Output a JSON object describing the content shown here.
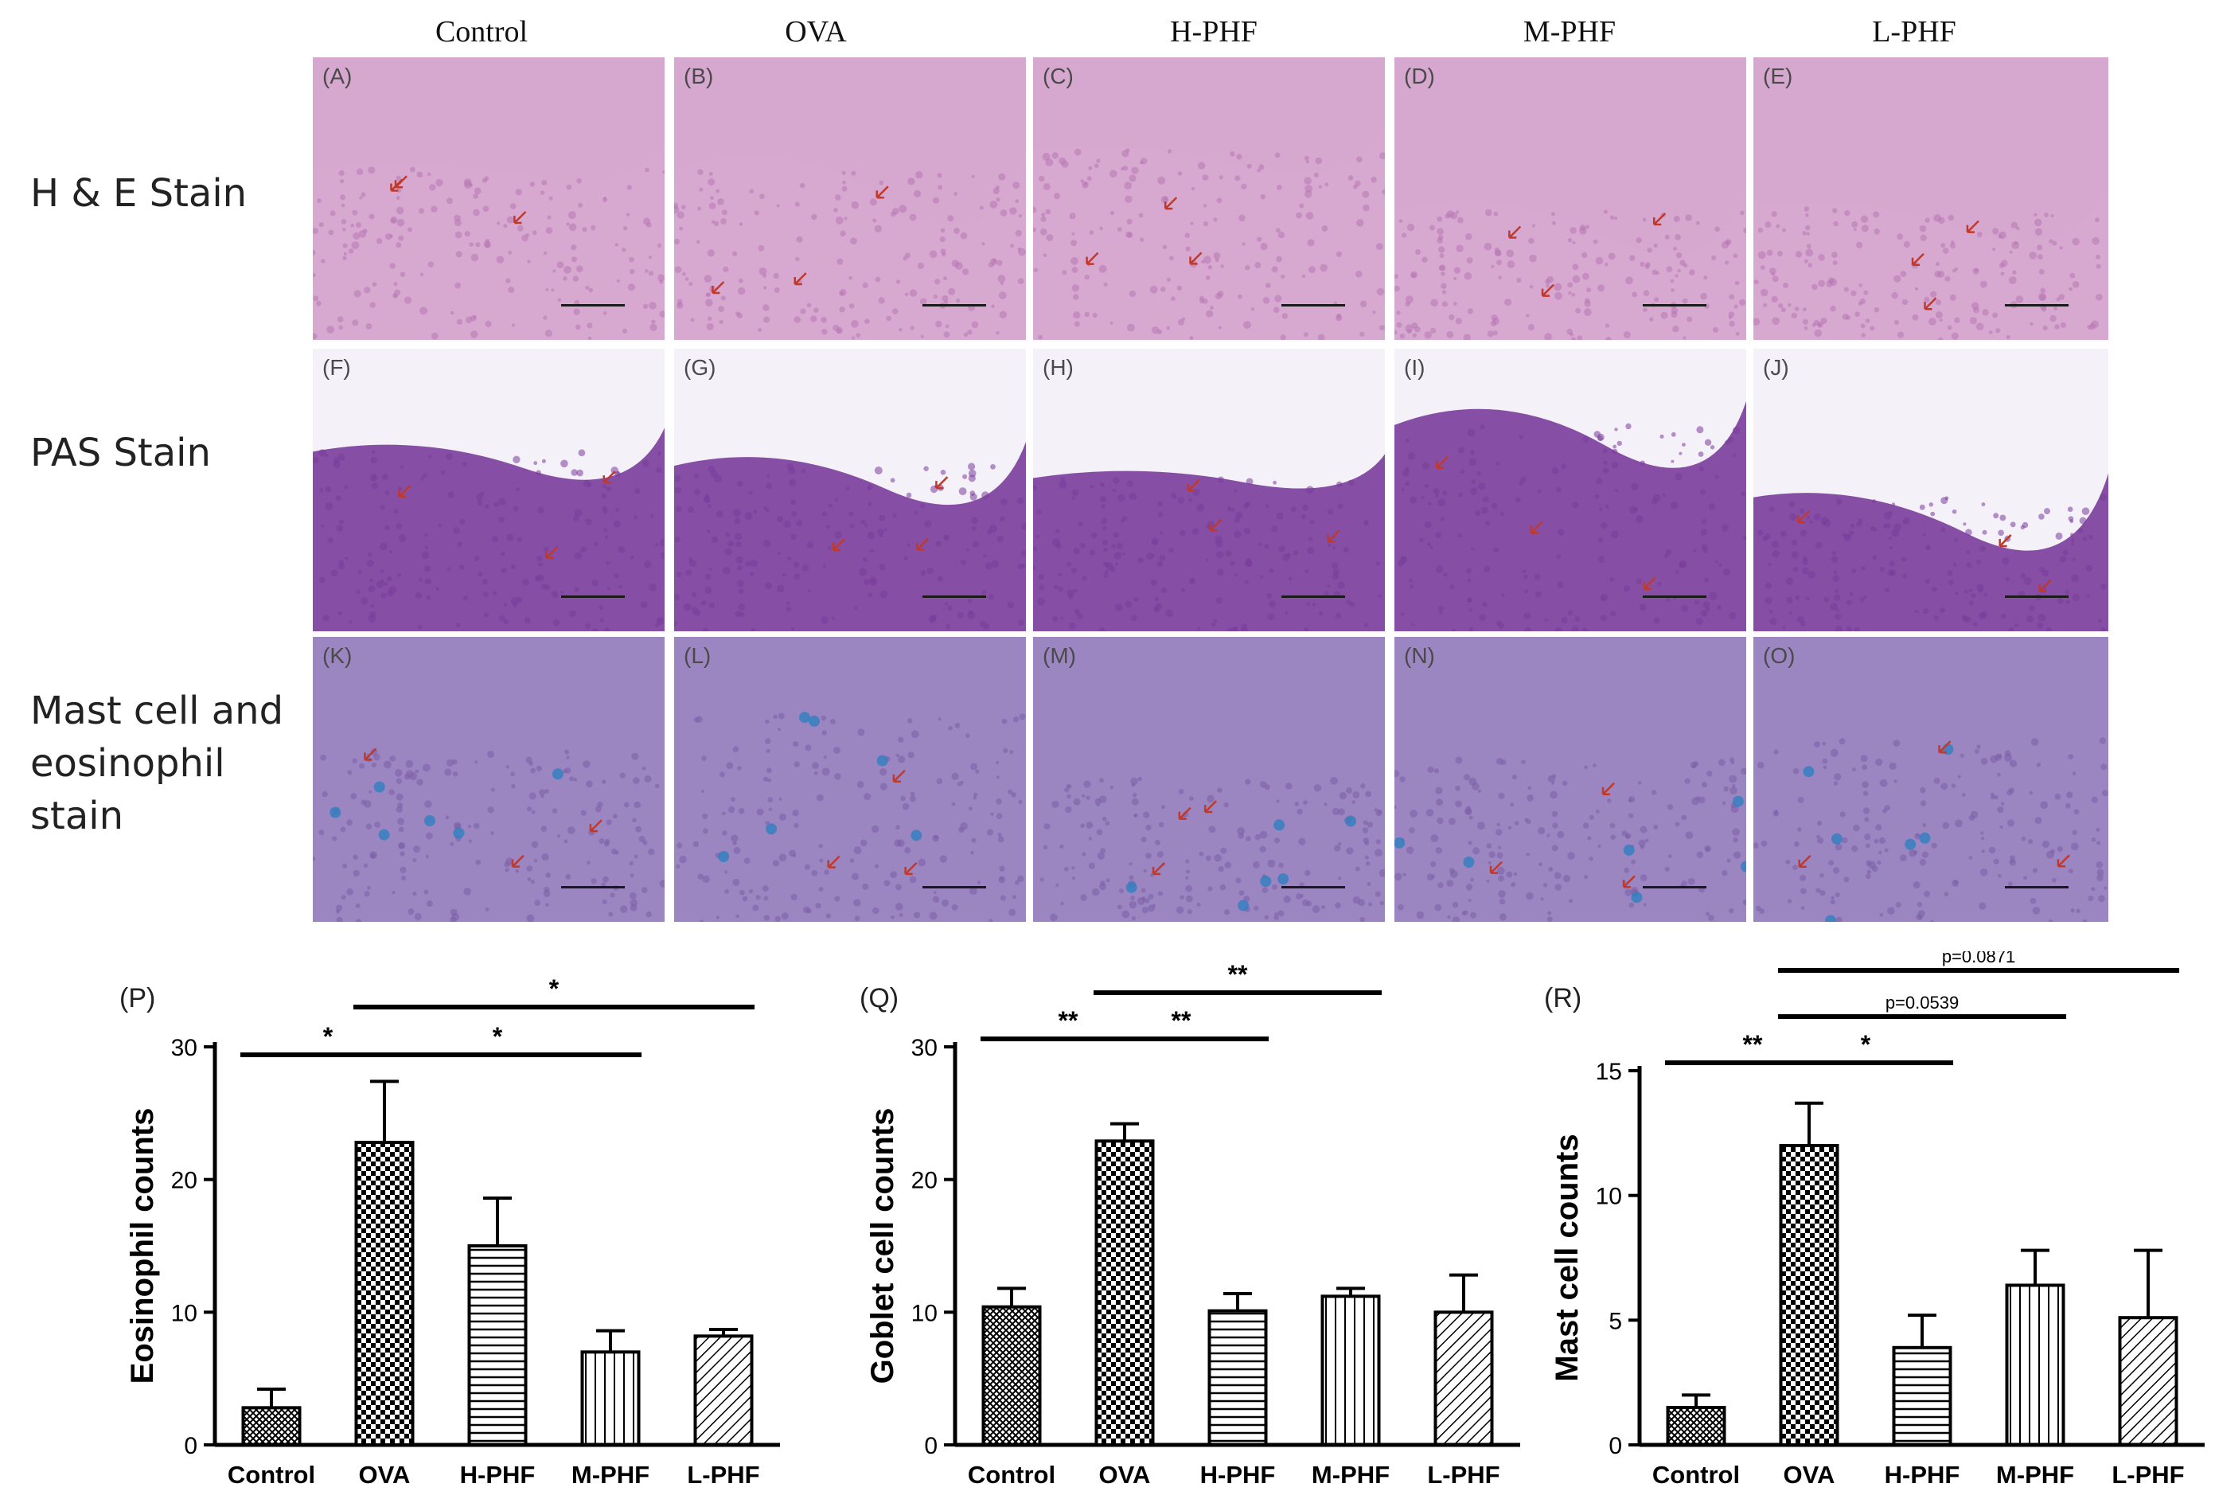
{
  "columns": [
    "Control",
    "OVA",
    "H-PHF",
    "M-PHF",
    "L-PHF"
  ],
  "rows": [
    {
      "label_lines": [
        "H & E Stain"
      ],
      "panels": [
        "(A)",
        "(B)",
        "(C)",
        "(D)",
        "(E)"
      ],
      "stain": "he"
    },
    {
      "label_lines": [
        "PAS Stain"
      ],
      "panels": [
        "(F)",
        "(G)",
        "(H)",
        "(I)",
        "(J)"
      ],
      "stain": "pas"
    },
    {
      "label_lines": [
        "Mast cell and",
        "eosinophil",
        "stain"
      ],
      "panels": [
        "(K)",
        "(L)",
        "(M)",
        "(N)",
        "(O)"
      ],
      "stain": "mast"
    }
  ],
  "colors": {
    "he_bg": "#d7a8cf",
    "he_tissue": "#b677b3",
    "pas_bg": "#ece8f5",
    "pas_tissue": "#7a3d9b",
    "mast_bg": "#9b86c2",
    "mast_tissue": "#7b5ea7",
    "arrow": "#c0392b",
    "mast_blue": "#2f7fbf",
    "bar_stroke": "#000000"
  },
  "chart_data": [
    {
      "panel_label": "(P)",
      "type": "bar",
      "categories": [
        "Control",
        "OVA",
        "H-PHF",
        "M-PHF",
        "L-PHF"
      ],
      "values": [
        2.8,
        22.8,
        15.0,
        7.0,
        8.2
      ],
      "errors": [
        1.4,
        4.6,
        3.6,
        1.6,
        0.5
      ],
      "patterns": [
        "crosshatch",
        "checker",
        "horizontal",
        "vertical",
        "diagonal"
      ],
      "ylabel": "Eosinophil counts",
      "ylim": [
        0,
        30
      ],
      "yticks": [
        0,
        10,
        20,
        30
      ],
      "significance": [
        {
          "from": "Control",
          "to": "OVA",
          "label": "*",
          "level": 1
        },
        {
          "from": "OVA",
          "to": "M-PHF",
          "label": "*",
          "level": 1
        },
        {
          "from": "OVA",
          "to": "L-PHF",
          "label": "*",
          "level": 2
        }
      ]
    },
    {
      "panel_label": "(Q)",
      "type": "bar",
      "categories": [
        "Control",
        "OVA",
        "H-PHF",
        "M-PHF",
        "L-PHF"
      ],
      "values": [
        10.4,
        22.9,
        10.1,
        11.2,
        10.0
      ],
      "errors": [
        1.4,
        1.3,
        1.3,
        0.6,
        2.8
      ],
      "patterns": [
        "crosshatch",
        "checker",
        "horizontal",
        "vertical",
        "diagonal"
      ],
      "ylabel": "Goblet cell counts",
      "ylim": [
        0,
        30
      ],
      "yticks": [
        0,
        10,
        20,
        30
      ],
      "significance": [
        {
          "from": "Control",
          "to": "OVA",
          "label": "**",
          "level": 1
        },
        {
          "from": "OVA",
          "to": "H-PHF",
          "label": "**",
          "level": 1
        },
        {
          "from": "OVA",
          "to": "M-PHF",
          "label": "**",
          "level": 2
        }
      ]
    },
    {
      "panel_label": "(R)",
      "type": "bar",
      "categories": [
        "Control",
        "OVA",
        "H-PHF",
        "M-PHF",
        "L-PHF"
      ],
      "values": [
        1.5,
        12.0,
        3.9,
        6.4,
        5.1
      ],
      "errors": [
        0.5,
        1.7,
        1.3,
        1.4,
        2.7
      ],
      "patterns": [
        "crosshatch",
        "checker",
        "horizontal",
        "vertical",
        "diagonal"
      ],
      "ylabel": "Mast cell counts",
      "ylim": [
        0,
        15
      ],
      "yticks": [
        0,
        5,
        10,
        15
      ],
      "significance": [
        {
          "from": "Control",
          "to": "OVA",
          "label": "**",
          "level": 1
        },
        {
          "from": "OVA",
          "to": "H-PHF",
          "label": "*",
          "level": 1
        },
        {
          "from": "OVA",
          "to": "M-PHF",
          "label": "p=0.0539",
          "level": 2
        },
        {
          "from": "OVA",
          "to": "L-PHF",
          "label": "p=0.0871",
          "level": 3
        }
      ]
    }
  ]
}
